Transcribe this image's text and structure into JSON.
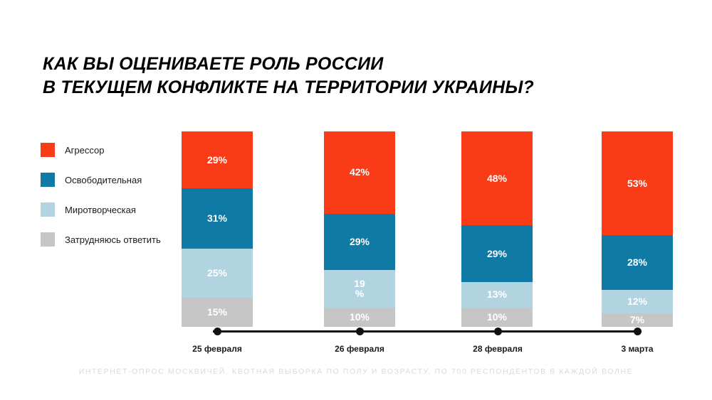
{
  "title": {
    "line1": "КАК ВЫ ОЦЕНИВАЕТЕ РОЛЬ РОССИИ",
    "line2": "В ТЕКУЩЕМ КОНФЛИКТЕ НА ТЕРРИТОРИИ УКРАИНЫ?"
  },
  "legend": {
    "items": [
      {
        "label": "Агрессор",
        "color": "#F93B17"
      },
      {
        "label": "Освободительная",
        "color": "#0E7AA5"
      },
      {
        "label": "Миротворческая",
        "color": "#B2D4E0"
      },
      {
        "label": "Затрудняюсь ответить",
        "color": "#C6C6C6"
      }
    ]
  },
  "chart_data": {
    "type": "bar",
    "stacked": true,
    "title": "Как вы оцениваете роль России в текущем конфликте на территории Украины?",
    "categories": [
      "25 февраля",
      "26 февраля",
      "28 февраля",
      "3 марта"
    ],
    "series": [
      {
        "name": "Агрессор",
        "color": "#F93B17",
        "values": [
          29,
          42,
          48,
          53
        ],
        "labels": [
          "29%",
          "42%",
          "48%",
          "53%"
        ]
      },
      {
        "name": "Освободительная",
        "color": "#0E7AA5",
        "values": [
          31,
          29,
          29,
          28
        ],
        "labels": [
          "31%",
          "29%",
          "29%",
          "28%"
        ]
      },
      {
        "name": "Миротворческая",
        "color": "#B2D4E0",
        "values": [
          25,
          19,
          13,
          12
        ],
        "labels": [
          "25%",
          "19\n%",
          "13%",
          "12%"
        ]
      },
      {
        "name": "Затрудняюсь ответить",
        "color": "#C6C6C6",
        "values": [
          15,
          10,
          10,
          7
        ],
        "labels": [
          "15%",
          "10%",
          "10%",
          "7%"
        ]
      }
    ],
    "value_unit": "%",
    "ylim": [
      0,
      100
    ],
    "grid": false,
    "legend_position": "left",
    "xlabel": "",
    "ylabel": ""
  },
  "footer": {
    "text": "ИНТЕРНЕТ-ОПРОС МОСКВИЧЕЙ, КВОТНАЯ ВЫБОРКА ПО ПОЛУ И ВОЗРАСТУ, ПО 700 РЕСПОНДЕНТОВ В КАЖДОЙ ВОЛНЕ"
  }
}
